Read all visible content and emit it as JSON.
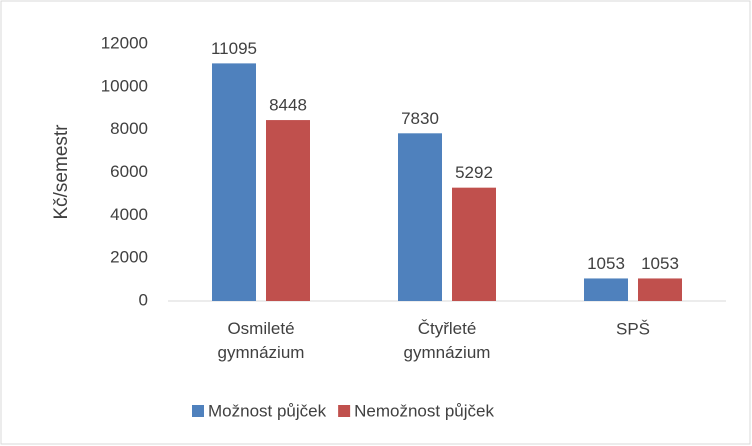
{
  "chart_data": {
    "type": "bar",
    "y_label": "Kč/semestr",
    "categories": [
      "Osmileté gymnázium",
      "Čtyřleté gymnázium",
      "SPŠ"
    ],
    "series": [
      {
        "name": "Možnost půjček",
        "color": "#4f81bd",
        "values": [
          11095,
          7830,
          1053
        ]
      },
      {
        "name": "Nemožnost půjček",
        "color": "#c0504d",
        "values": [
          8448,
          5292,
          1053
        ]
      }
    ],
    "ylim": [
      0,
      12000
    ],
    "yticks": [
      0,
      2000,
      4000,
      6000,
      8000,
      10000,
      12000
    ],
    "grid": false,
    "legend": "bottom"
  }
}
